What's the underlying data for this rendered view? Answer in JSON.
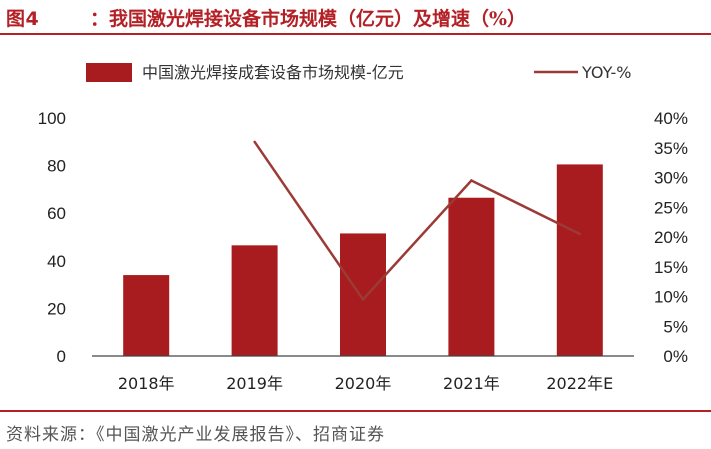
{
  "figure": {
    "label": "图4",
    "title": "：我国激光焊接设备市场规模（亿元）及增速（%）",
    "source": "资料来源：《中国激光产业发展报告》、招商证券"
  },
  "colors": {
    "accent": "#b32025",
    "bar": "#a81c1f",
    "line": "#9b3a36"
  },
  "chart_data": {
    "type": "bar",
    "categories": [
      "2018年",
      "2019年",
      "2020年",
      "2021年",
      "2022年E"
    ],
    "series": [
      {
        "name": "中国激光焊接成套设备市场规模-亿元",
        "type": "bar",
        "axis": "left",
        "values": [
          34,
          46.5,
          51.5,
          66.5,
          80.5
        ]
      },
      {
        "name": "YOY-%",
        "type": "line",
        "axis": "right",
        "values": [
          null,
          0.36,
          0.095,
          0.295,
          0.205
        ]
      }
    ],
    "yaxis_left": {
      "ylim": [
        0,
        100
      ],
      "ticks": [
        "0",
        "20",
        "40",
        "60",
        "80",
        "100"
      ]
    },
    "yaxis_right": {
      "ylim": [
        0,
        0.4
      ],
      "ticks": [
        "0%",
        "5%",
        "10%",
        "15%",
        "20%",
        "25%",
        "30%",
        "35%",
        "40%"
      ]
    },
    "legend_position": "top",
    "grid": false
  }
}
